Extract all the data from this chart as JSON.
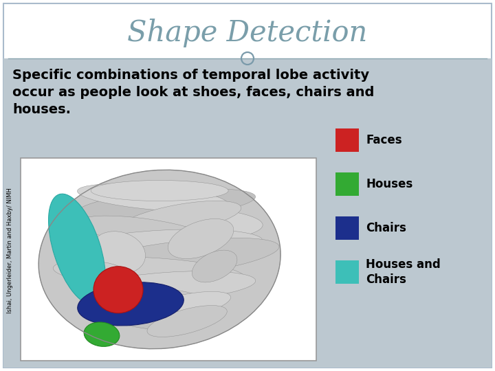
{
  "title": "Shape Detection",
  "title_color": "#7a9eaa",
  "title_fontsize": 30,
  "bg_color": "#ffffff",
  "content_bg_color": "#bcc8d0",
  "subtitle_text": "Specific combinations of temporal lobe activity\noccur as people look at shoes, faces, chairs and\nhouses.",
  "subtitle_fontsize": 14,
  "subtitle_color": "#000000",
  "divider_color": "#8aa5b0",
  "circle_color": "#7a9aaa",
  "legend_items": [
    {
      "label": "Faces",
      "color": "#cc2222"
    },
    {
      "label": "Houses",
      "color": "#33aa33"
    },
    {
      "label": "Chairs",
      "color": "#1c2f8c"
    },
    {
      "label": "Houses and\nChairs",
      "color": "#3dbfb8"
    }
  ],
  "legend_fontsize": 12,
  "credit_text": "Ishai, Ungerleider, Martin and Haxby/ NIMH",
  "credit_fontsize": 6.0,
  "slide_border_color": "#aabbcc",
  "brain_bg": "#d0d0d0",
  "brain_body_color": "#b8b8b8"
}
